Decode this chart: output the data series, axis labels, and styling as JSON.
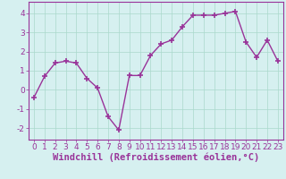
{
  "x": [
    0,
    1,
    2,
    3,
    4,
    5,
    6,
    7,
    8,
    9,
    10,
    11,
    12,
    13,
    14,
    15,
    16,
    17,
    18,
    19,
    20,
    21,
    22,
    23
  ],
  "y": [
    -0.4,
    0.7,
    1.4,
    1.5,
    1.4,
    0.6,
    0.1,
    -1.4,
    -2.1,
    0.75,
    0.75,
    1.8,
    2.4,
    2.6,
    3.3,
    3.9,
    3.9,
    3.9,
    4.0,
    4.1,
    2.5,
    1.7,
    2.6,
    1.5
  ],
  "line_color": "#993399",
  "marker": "+",
  "marker_size": 4,
  "bg_color": "#d6f0f0",
  "grid_color": "#aad8cc",
  "xlabel": "Windchill (Refroidissement éolien,°C)",
  "xlabel_color": "#993399",
  "xlim": [
    -0.5,
    23.5
  ],
  "ylim": [
    -2.6,
    4.6
  ],
  "yticks": [
    -2,
    -1,
    0,
    1,
    2,
    3,
    4
  ],
  "xticks": [
    0,
    1,
    2,
    3,
    4,
    5,
    6,
    7,
    8,
    9,
    10,
    11,
    12,
    13,
    14,
    15,
    16,
    17,
    18,
    19,
    20,
    21,
    22,
    23
  ],
  "tick_color": "#993399",
  "tick_label_fontsize": 6.5,
  "xlabel_fontsize": 7.5,
  "line_width": 1.0,
  "spine_color": "#993399"
}
